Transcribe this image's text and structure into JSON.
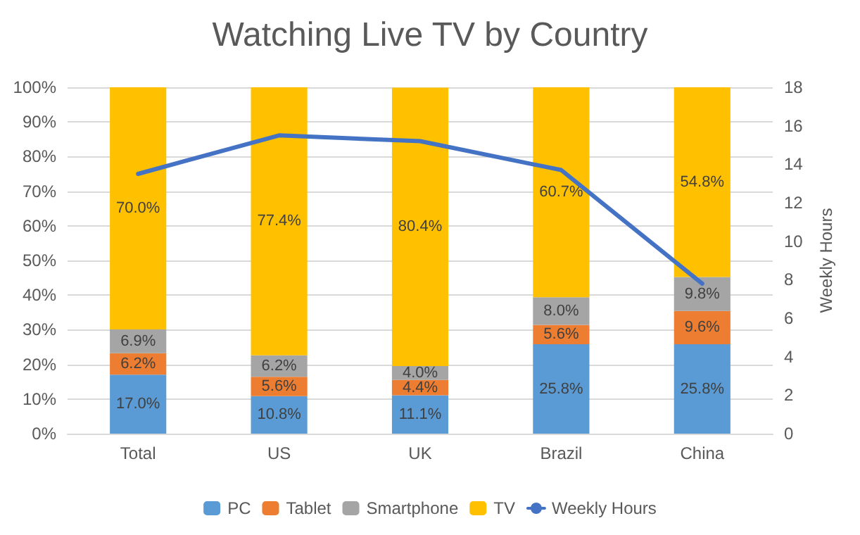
{
  "chart_data": {
    "type": "bar",
    "title": "Watching Live TV by Country",
    "y2label": "Weekly Hours",
    "categories": [
      "Total",
      "US",
      "UK",
      "Brazil",
      "China"
    ],
    "stacked": true,
    "grid": "y",
    "legend": "bottom",
    "ylim": [
      0,
      100
    ],
    "yticks": [
      {
        "value": 0,
        "label": "0%"
      },
      {
        "value": 10,
        "label": "10%"
      },
      {
        "value": 20,
        "label": "20%"
      },
      {
        "value": 30,
        "label": "30%"
      },
      {
        "value": 40,
        "label": "40%"
      },
      {
        "value": 50,
        "label": "50%"
      },
      {
        "value": 60,
        "label": "60%"
      },
      {
        "value": 70,
        "label": "70%"
      },
      {
        "value": 80,
        "label": "80%"
      },
      {
        "value": 90,
        "label": "90%"
      },
      {
        "value": 100,
        "label": "100%"
      }
    ],
    "y2lim": [
      0,
      18
    ],
    "y2ticks": [
      0,
      2,
      4,
      6,
      8,
      10,
      12,
      14,
      16,
      18
    ],
    "series": [
      {
        "name": "PC",
        "color": "#5b9bd5",
        "values": [
          17.0,
          10.8,
          11.1,
          25.8,
          25.8
        ],
        "value_labels": [
          "17.0%",
          "10.8%",
          "11.1%",
          "25.8%",
          "25.8%"
        ]
      },
      {
        "name": "Tablet",
        "color": "#ed7d31",
        "values": [
          6.2,
          5.6,
          4.4,
          5.6,
          9.6
        ],
        "value_labels": [
          "6.2%",
          "5.6%",
          "4.4%",
          "5.6%",
          "9.6%"
        ]
      },
      {
        "name": "Smartphone",
        "color": "#a5a5a5",
        "values": [
          6.9,
          6.2,
          4.0,
          8.0,
          9.8
        ],
        "value_labels": [
          "6.9%",
          "6.2%",
          "4.0%",
          "8.0%",
          "9.8%"
        ]
      },
      {
        "name": "TV",
        "color": "#ffc000",
        "values": [
          70.0,
          77.4,
          80.4,
          60.7,
          54.8
        ],
        "value_labels": [
          "70.0%",
          "77.4%",
          "80.4%",
          "60.7%",
          "54.8%"
        ]
      },
      {
        "name": "Weekly Hours",
        "type": "line",
        "axis": "y2",
        "color": "#4472c4",
        "marker": "none",
        "values": [
          13.5,
          15.5,
          15.2,
          13.7,
          7.8
        ]
      }
    ]
  }
}
